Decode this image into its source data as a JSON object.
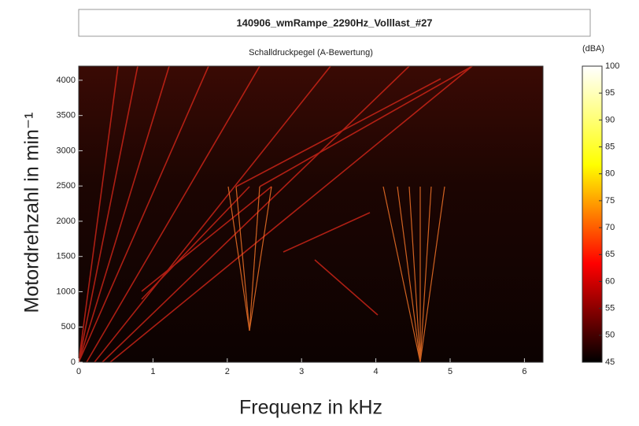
{
  "chart_data": {
    "type": "heatmap",
    "title": "140906_wmRampe_2290Hz_Volllast_#27",
    "subtitle": "Schalldruckpegel (A-Bewertung)",
    "x_label": "Frequenz in kHz",
    "y_label": "Motordrehzahl in min⁻¹",
    "xlim": [
      0,
      6.25
    ],
    "xticks": [
      0,
      1,
      2,
      3,
      4,
      5,
      6
    ],
    "ylim": [
      0,
      4200
    ],
    "yticks": [
      0,
      500,
      1000,
      1500,
      2000,
      2500,
      3000,
      3500,
      4000
    ],
    "colorbar": {
      "label": "(dBA)",
      "lim": [
        45,
        100
      ],
      "ticks": [
        45,
        50,
        55,
        60,
        65,
        70,
        75,
        80,
        85,
        90,
        95,
        100
      ],
      "colors": [
        "#000000",
        "#ff0000",
        "#ffff00",
        "#ffffff"
      ]
    }
  }
}
